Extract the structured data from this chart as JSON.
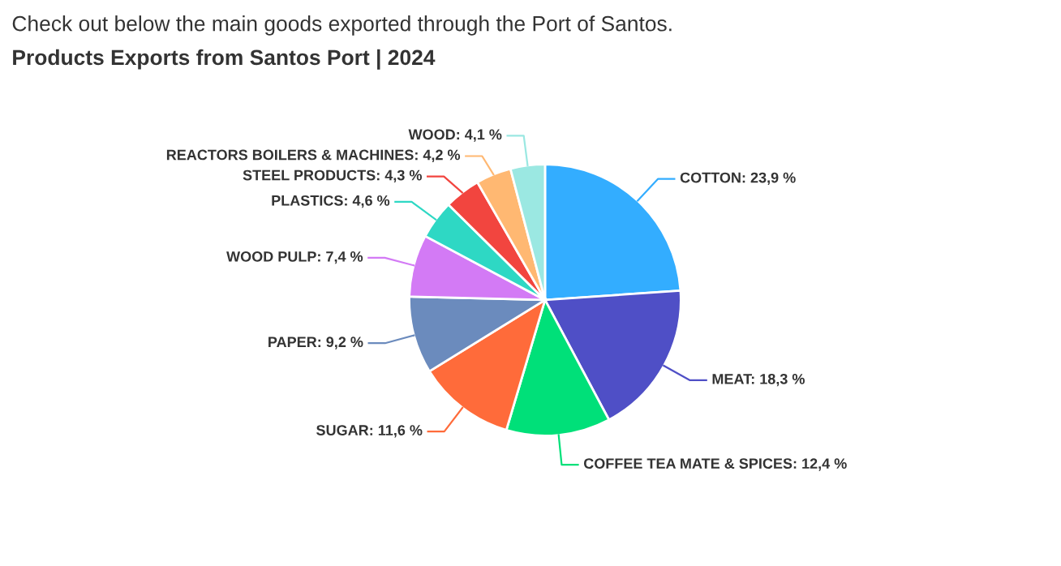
{
  "chart_data": {
    "type": "pie",
    "title": "Check out below the main goods exported through the Port of Santos.",
    "subtitle": "Products Exports from Santos Port | 2024",
    "categories": [
      "COTTON",
      "MEAT",
      "COFFEE TEA MATE & SPICES",
      "SUGAR",
      "PAPER",
      "WOOD PULP",
      "PLASTICS",
      "STEEL PRODUCTS",
      "REACTORS BOILERS & MACHINES",
      "WOOD"
    ],
    "values": [
      23.9,
      18.3,
      12.4,
      11.6,
      9.2,
      7.4,
      4.6,
      4.3,
      4.2,
      4.1
    ],
    "value_labels": [
      "23,9 %",
      "18,3 %",
      "12,4 %",
      "11,6 %",
      "9,2 %",
      "7,4 %",
      "4,6 %",
      "4,3 %",
      "4,2 %",
      "4,1 %"
    ],
    "colors": [
      "#33adff",
      "#4f4fc6",
      "#00e079",
      "#ff6b3a",
      "#6b8bbd",
      "#d37af5",
      "#2ed8c4",
      "#f2453f",
      "#ffb872",
      "#9be8e2"
    ],
    "legend": false
  }
}
